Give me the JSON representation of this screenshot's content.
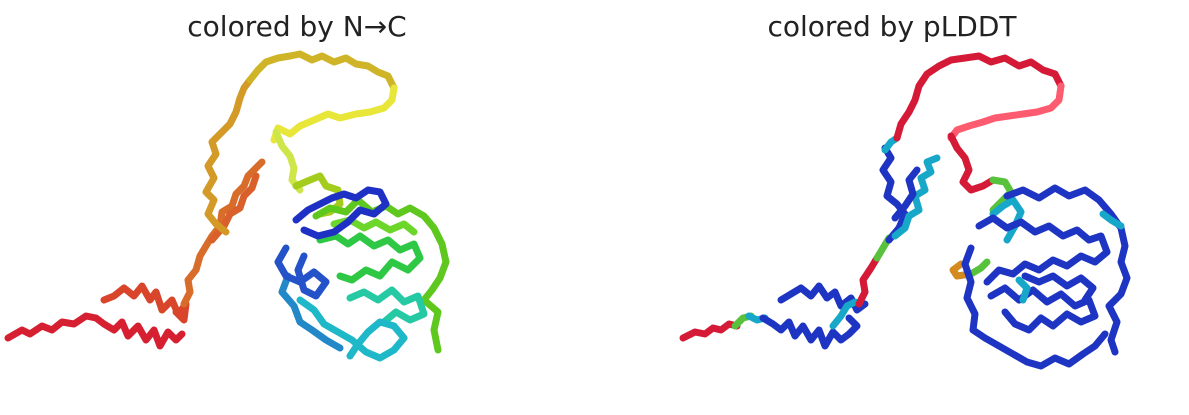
{
  "panels": [
    {
      "title": "colored by N→C",
      "coloring": "rainbow",
      "colors": [
        "#d62031",
        "#d8452a",
        "#d86d2b",
        "#d49a28",
        "#cfb427",
        "#e9e63a",
        "#cfe64a",
        "#a4cc1c",
        "#5fc81f",
        "#2ec845",
        "#25c9a3",
        "#1fb8c8",
        "#2288c8",
        "#2452c9",
        "#1f30c4"
      ]
    },
    {
      "title": "colored by pLDDT",
      "coloring": "confidence",
      "colors": {
        "very_low": "#d41a36",
        "low": "#fd5c70",
        "medium": "#59c23c",
        "high": "#17a8c9",
        "very_high": "#1e34c2",
        "orange": "#d48a21"
      }
    }
  ]
}
